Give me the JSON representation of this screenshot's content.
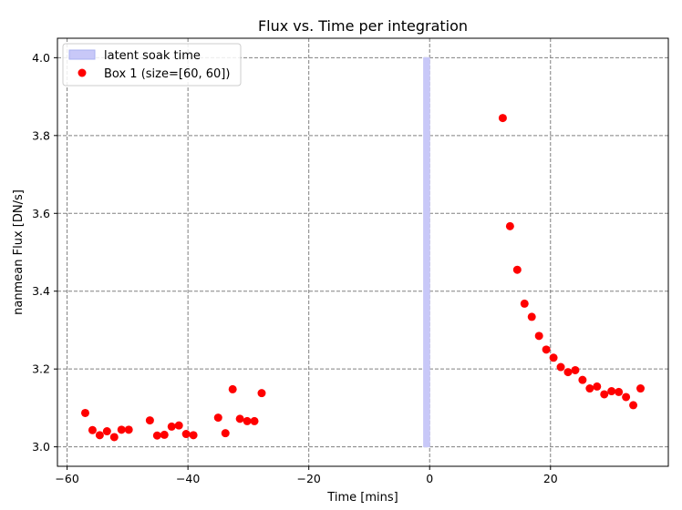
{
  "chart_data": {
    "type": "scatter",
    "title": "Flux vs. Time per integration",
    "xlabel": "Time [mins]",
    "ylabel": "nanmean Flux [DN/s]",
    "xlim": [
      -61.6,
      39.5
    ],
    "ylim": [
      2.95,
      4.05
    ],
    "xticks": [
      -60,
      -40,
      -20,
      0,
      20
    ],
    "yticks": [
      3.0,
      3.2,
      3.4,
      3.6,
      3.8,
      4.0
    ],
    "xtick_labels": [
      "−60",
      "−40",
      "−20",
      "0",
      "20"
    ],
    "ytick_labels": [
      "3.0",
      "3.2",
      "3.4",
      "3.6",
      "3.8",
      "4.0"
    ],
    "grid": true,
    "legend_position": "top-left",
    "span": {
      "name": "latent soak time",
      "x0": -1.0,
      "x1": 0.0,
      "y0": 3.0,
      "y1": 4.0,
      "color": "#c8c8f8"
    },
    "series": [
      {
        "name": "Box 1 (size=[60, 60])",
        "color": "#ff0000",
        "points": [
          [
            -57.0,
            3.087
          ],
          [
            -55.8,
            3.043
          ],
          [
            -54.6,
            3.03
          ],
          [
            -53.4,
            3.04
          ],
          [
            -52.2,
            3.025
          ],
          [
            -51.0,
            3.044
          ],
          [
            -49.8,
            3.044
          ],
          [
            -46.3,
            3.068
          ],
          [
            -45.1,
            3.029
          ],
          [
            -43.9,
            3.031
          ],
          [
            -42.7,
            3.052
          ],
          [
            -41.5,
            3.055
          ],
          [
            -40.3,
            3.033
          ],
          [
            -39.1,
            3.03
          ],
          [
            -35.0,
            3.075
          ],
          [
            -33.8,
            3.035
          ],
          [
            -32.6,
            3.148
          ],
          [
            -31.4,
            3.072
          ],
          [
            -30.2,
            3.066
          ],
          [
            -29.0,
            3.066
          ],
          [
            -27.8,
            3.138
          ],
          [
            12.1,
            3.845
          ],
          [
            13.3,
            3.567
          ],
          [
            14.5,
            3.455
          ],
          [
            15.7,
            3.368
          ],
          [
            16.9,
            3.334
          ],
          [
            18.1,
            3.285
          ],
          [
            19.3,
            3.25
          ],
          [
            20.5,
            3.229
          ],
          [
            21.7,
            3.205
          ],
          [
            22.9,
            3.192
          ],
          [
            24.1,
            3.197
          ],
          [
            25.3,
            3.172
          ],
          [
            26.5,
            3.15
          ],
          [
            27.7,
            3.155
          ],
          [
            28.9,
            3.135
          ],
          [
            30.1,
            3.143
          ],
          [
            31.3,
            3.141
          ],
          [
            32.5,
            3.128
          ],
          [
            33.7,
            3.107
          ],
          [
            34.9,
            3.15
          ]
        ]
      }
    ]
  }
}
